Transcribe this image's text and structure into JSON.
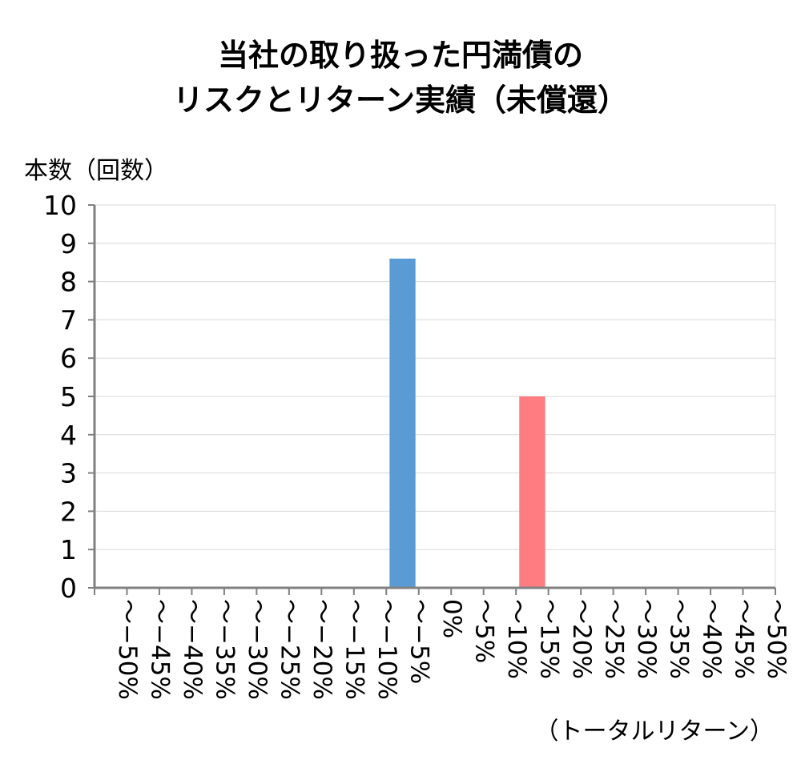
{
  "chart_data": {
    "type": "bar",
    "title_line1": "当社の取り扱った円満債の",
    "title_line2": "リスクとリターン実績（未償還）",
    "ylabel": "本数（回数）",
    "xlabel": "（トータルリターン）",
    "ylim": [
      0,
      10
    ],
    "yticks": [
      "0",
      "1",
      "2",
      "3",
      "4",
      "5",
      "6",
      "7",
      "8",
      "9",
      "10"
    ],
    "categories": [
      "〜−50%",
      "〜−45%",
      "〜−40%",
      "〜−35%",
      "〜−30%",
      "〜−25%",
      "〜−20%",
      "〜−15%",
      "〜−10%",
      "〜−5%",
      "0%",
      "〜5%",
      "〜10%",
      "〜15%",
      "〜20%",
      "〜25%",
      "〜30%",
      "〜35%",
      "〜40%",
      "〜45%",
      "〜50%"
    ],
    "values": [
      0,
      0,
      0,
      0,
      0,
      0,
      0,
      0,
      0,
      8.6,
      0,
      0,
      0,
      5,
      0,
      0,
      0,
      0,
      0,
      0,
      0
    ],
    "bar_colors": [
      "#5b9bd5",
      "#5b9bd5",
      "#5b9bd5",
      "#5b9bd5",
      "#5b9bd5",
      "#5b9bd5",
      "#5b9bd5",
      "#5b9bd5",
      "#5b9bd5",
      "#5b9bd5",
      "#5b9bd5",
      "#ff7c80",
      "#ff7c80",
      "#ff7c80",
      "#ff7c80",
      "#ff7c80",
      "#ff7c80",
      "#ff7c80",
      "#ff7c80",
      "#ff7c80",
      "#ff7c80"
    ],
    "grid": true
  }
}
